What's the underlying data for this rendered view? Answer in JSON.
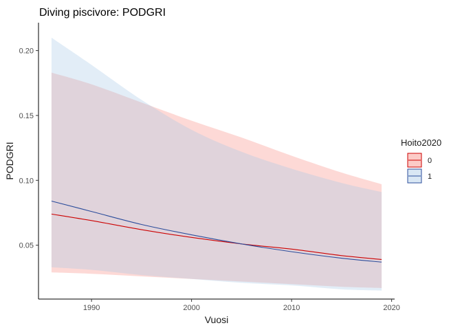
{
  "chart_data": {
    "type": "line",
    "title": "Diving piscivore: PODGRI",
    "xlabel": "Vuosi",
    "ylabel": "PODGRI",
    "xlim": [
      1984.7,
      2020.3
    ],
    "ylim": [
      0.0085,
      0.2215
    ],
    "x_ticks": [
      1990,
      2000,
      2010,
      2020
    ],
    "y_ticks": [
      0.05,
      0.1,
      0.15,
      0.2
    ],
    "x_tick_labels": [
      "1990",
      "2000",
      "2010",
      "2020"
    ],
    "y_tick_labels": [
      "0.05",
      "0.10",
      "0.15",
      "0.20"
    ],
    "grid": false,
    "legend": {
      "title": "Hoito2020",
      "position": "right"
    },
    "x": [
      1986,
      1990,
      1995,
      2000,
      2005,
      2010,
      2015,
      2019
    ],
    "series": [
      {
        "name": "0",
        "color": "#cc0000",
        "fill": "#f8766d",
        "fill_opacity": 0.28,
        "values": [
          0.074,
          0.069,
          0.062,
          0.056,
          0.051,
          0.047,
          0.042,
          0.039
        ],
        "lower": [
          0.029,
          0.028,
          0.026,
          0.024,
          0.022,
          0.02,
          0.018,
          0.017
        ],
        "upper": [
          0.183,
          0.174,
          0.16,
          0.146,
          0.133,
          0.119,
          0.106,
          0.097
        ]
      },
      {
        "name": "1",
        "color": "#2b4c9b",
        "fill": "#a6c8e6",
        "fill_opacity": 0.33,
        "values": [
          0.084,
          0.076,
          0.066,
          0.058,
          0.051,
          0.045,
          0.04,
          0.037
        ],
        "lower": [
          0.033,
          0.031,
          0.027,
          0.024,
          0.021,
          0.019,
          0.016,
          0.015
        ],
        "upper": [
          0.21,
          0.189,
          0.162,
          0.139,
          0.122,
          0.109,
          0.098,
          0.091
        ]
      }
    ]
  }
}
